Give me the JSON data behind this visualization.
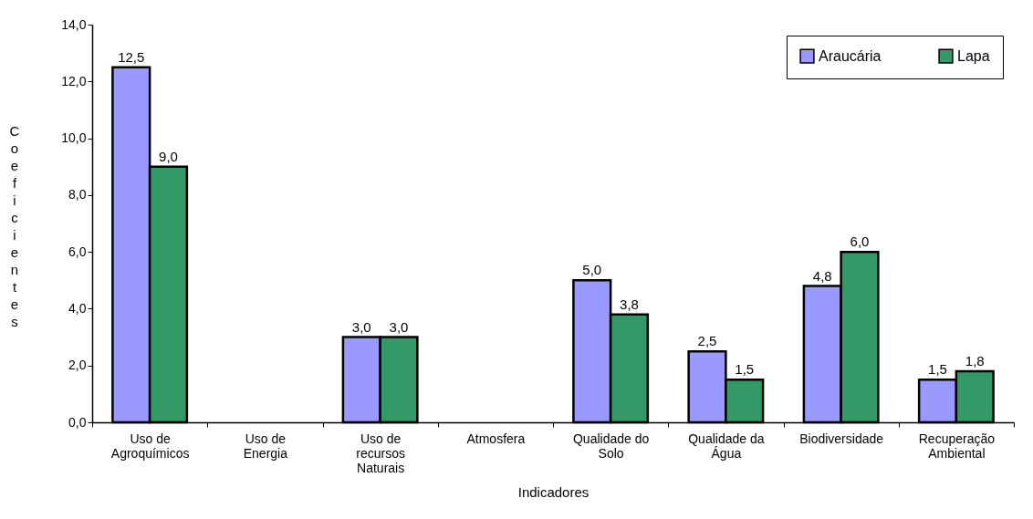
{
  "chart_data": {
    "type": "bar",
    "xlabel": "Indicadores",
    "ylabel": "Coeficientes",
    "categories": [
      "Uso de Agroquímicos",
      "Uso de Energia",
      "Uso de recursos Naturais",
      "Atmosfera",
      "Qualidade do Solo",
      "Qualidade da Água",
      "Biodiversidade",
      "Recuperação Ambiental"
    ],
    "series": [
      {
        "name": "Araucária",
        "color": "#9999ff",
        "values": [
          12.5,
          null,
          3.0,
          null,
          5.0,
          2.5,
          4.8,
          1.5
        ],
        "value_labels": [
          "12,5",
          null,
          "3,0",
          null,
          "5,0",
          "2,5",
          "4,8",
          "1,5"
        ]
      },
      {
        "name": "Lapa",
        "color": "#339966",
        "values": [
          9.0,
          null,
          3.0,
          null,
          3.8,
          1.5,
          6.0,
          1.8
        ],
        "value_labels": [
          "9,0",
          null,
          "3,0",
          null,
          "3,8",
          "1,5",
          "6,0",
          "1,8"
        ]
      }
    ],
    "ylim": [
      0,
      14
    ],
    "yticks": [
      {
        "value": 0,
        "label": "0,0"
      },
      {
        "value": 2,
        "label": "2,0"
      },
      {
        "value": 4,
        "label": "4,0"
      },
      {
        "value": 6,
        "label": "6,0"
      },
      {
        "value": 8,
        "label": "8,0"
      },
      {
        "value": 10,
        "label": "10,0"
      },
      {
        "value": 12,
        "label": "12,0"
      },
      {
        "value": 14,
        "label": "14,0"
      }
    ],
    "grid": false,
    "legend": "top right"
  }
}
